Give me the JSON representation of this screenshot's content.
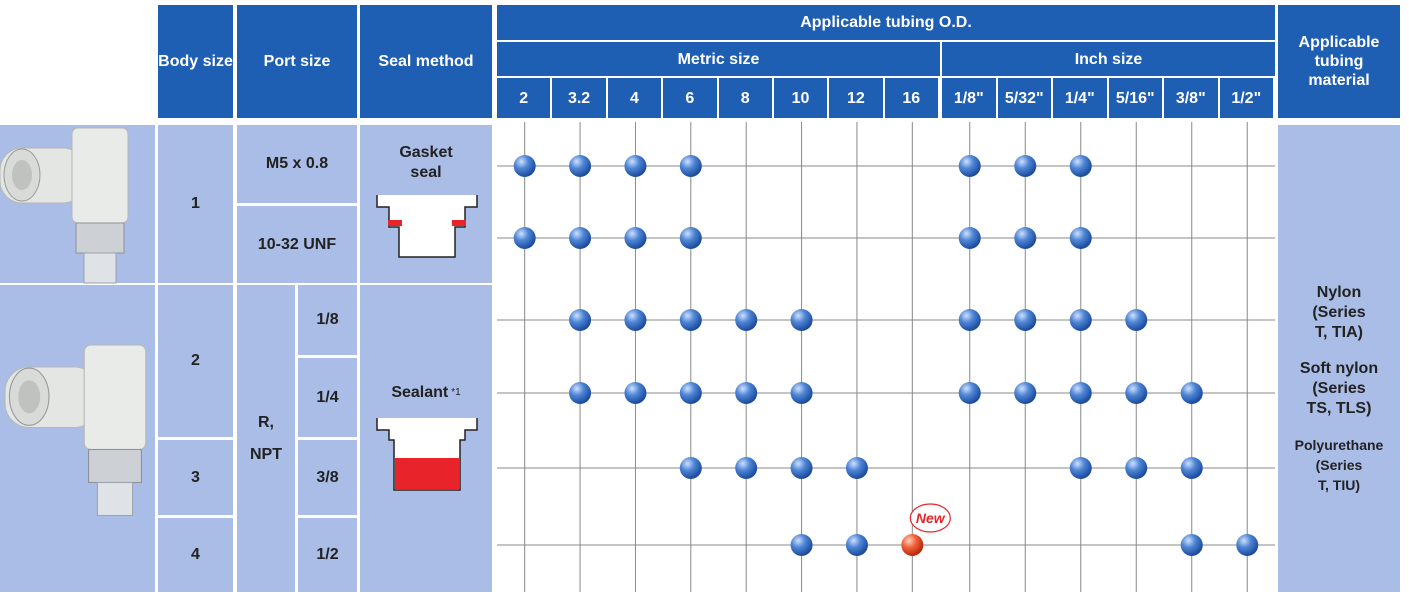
{
  "header": {
    "body_size": "Body size",
    "port_size": "Port size",
    "seal_method": "Seal method",
    "tubing_od": "Applicable tubing O.D.",
    "metric": "Metric size",
    "inch": "Inch size",
    "material": "Applicable tubing material"
  },
  "sizes": {
    "metric": [
      "2",
      "3.2",
      "4",
      "6",
      "8",
      "10",
      "12",
      "16"
    ],
    "inch": [
      "1/8\"",
      "5/32\"",
      "1/4\"",
      "5/16\"",
      "3/8\"",
      "1/2\""
    ]
  },
  "body_sizes": [
    "1",
    "2",
    "3",
    "4"
  ],
  "port_thread": [
    "R,",
    "NPT"
  ],
  "seal": {
    "gasket": "Gasket seal",
    "sealant": "Sealant",
    "sealant_note": "*1"
  },
  "rows": [
    {
      "port": "M5 x 0.8",
      "dots": [
        true,
        true,
        true,
        true,
        false,
        false,
        false,
        false,
        true,
        true,
        true,
        false,
        false,
        false
      ]
    },
    {
      "port": "10-32 UNF",
      "dots": [
        true,
        true,
        true,
        true,
        false,
        false,
        false,
        false,
        true,
        true,
        true,
        false,
        false,
        false
      ]
    },
    {
      "port": "1/8",
      "dots": [
        false,
        true,
        true,
        true,
        true,
        true,
        false,
        false,
        true,
        true,
        true,
        true,
        false,
        false
      ]
    },
    {
      "port": "1/4",
      "dots": [
        false,
        true,
        true,
        true,
        true,
        true,
        false,
        false,
        true,
        true,
        true,
        true,
        true,
        false
      ]
    },
    {
      "port": "3/8",
      "dots": [
        false,
        false,
        false,
        true,
        true,
        true,
        true,
        false,
        false,
        false,
        true,
        true,
        true,
        false
      ]
    },
    {
      "port": "1/2",
      "dots": [
        false,
        false,
        false,
        false,
        false,
        true,
        true,
        "New",
        false,
        false,
        false,
        false,
        true,
        true
      ]
    }
  ],
  "material": [
    "Nylon\n(Series\nT, TIA)",
    "Soft nylon\n(Series\nTS, TLS)",
    "Polyurethane\n(Series\nT, TIU)"
  ]
}
